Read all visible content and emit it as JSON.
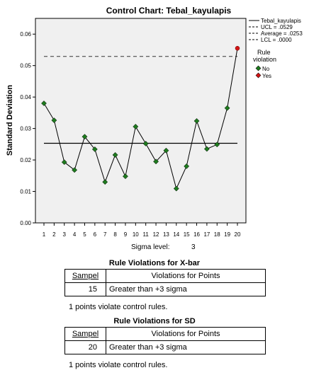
{
  "chart_data": {
    "type": "line",
    "title": "Control Chart: Tebal_kayulapis",
    "ylabel": "Standard Deviation",
    "xlabel_prefix": "Sigma level:",
    "sigma_level": "3",
    "ylim": [
      0,
      0.065
    ],
    "yticks": [
      "0.00",
      "0.01",
      "0.02",
      "0.03",
      "0.04",
      "0.05",
      "0.06"
    ],
    "ytick_values": [
      0,
      0.01,
      0.02,
      0.03,
      0.04,
      0.05,
      0.06
    ],
    "x": [
      1,
      2,
      3,
      4,
      5,
      6,
      7,
      8,
      9,
      10,
      11,
      12,
      13,
      14,
      15,
      16,
      17,
      18,
      19,
      20
    ],
    "series": [
      {
        "name": "Tebal_kayulapis",
        "values": [
          0.038,
          0.0326,
          0.0193,
          0.0168,
          0.0274,
          0.0234,
          0.013,
          0.0216,
          0.0148,
          0.0306,
          0.0252,
          0.0195,
          0.023,
          0.0109,
          0.018,
          0.0324,
          0.0235,
          0.0249,
          0.0365,
          0.0555
        ],
        "violation": [
          false,
          false,
          false,
          false,
          false,
          false,
          false,
          false,
          false,
          false,
          false,
          false,
          false,
          false,
          false,
          false,
          false,
          false,
          false,
          true
        ]
      }
    ],
    "ucl": 0.0529,
    "average": 0.0253,
    "lcl": 0.0,
    "legend": [
      "Tebal_kayulapis",
      "UCL = .0529",
      "Average = .0253",
      "LCL = .0000"
    ],
    "legend_position": "right",
    "rule_violation": {
      "title_line1": "Rule",
      "title_line2": "violation",
      "no": "No",
      "yes": "Yes"
    },
    "colors": {
      "plot_bg": "#f0f0f0",
      "no": "#1e7a1e",
      "yes": "#d21414"
    }
  },
  "xbar_section": {
    "title": "Rule Violations for X-bar",
    "headers": [
      "Sampel",
      "Violations for Points"
    ],
    "rows": [
      [
        "15",
        "Greater than +3 sigma"
      ]
    ],
    "note": "1 points violate control rules."
  },
  "sd_section": {
    "title": "Rule Violations for SD",
    "headers": [
      "Sampel",
      "Violations for Points"
    ],
    "rows": [
      [
        "20",
        "Greater than +3 sigma"
      ]
    ],
    "note": "1 points violate control rules."
  }
}
